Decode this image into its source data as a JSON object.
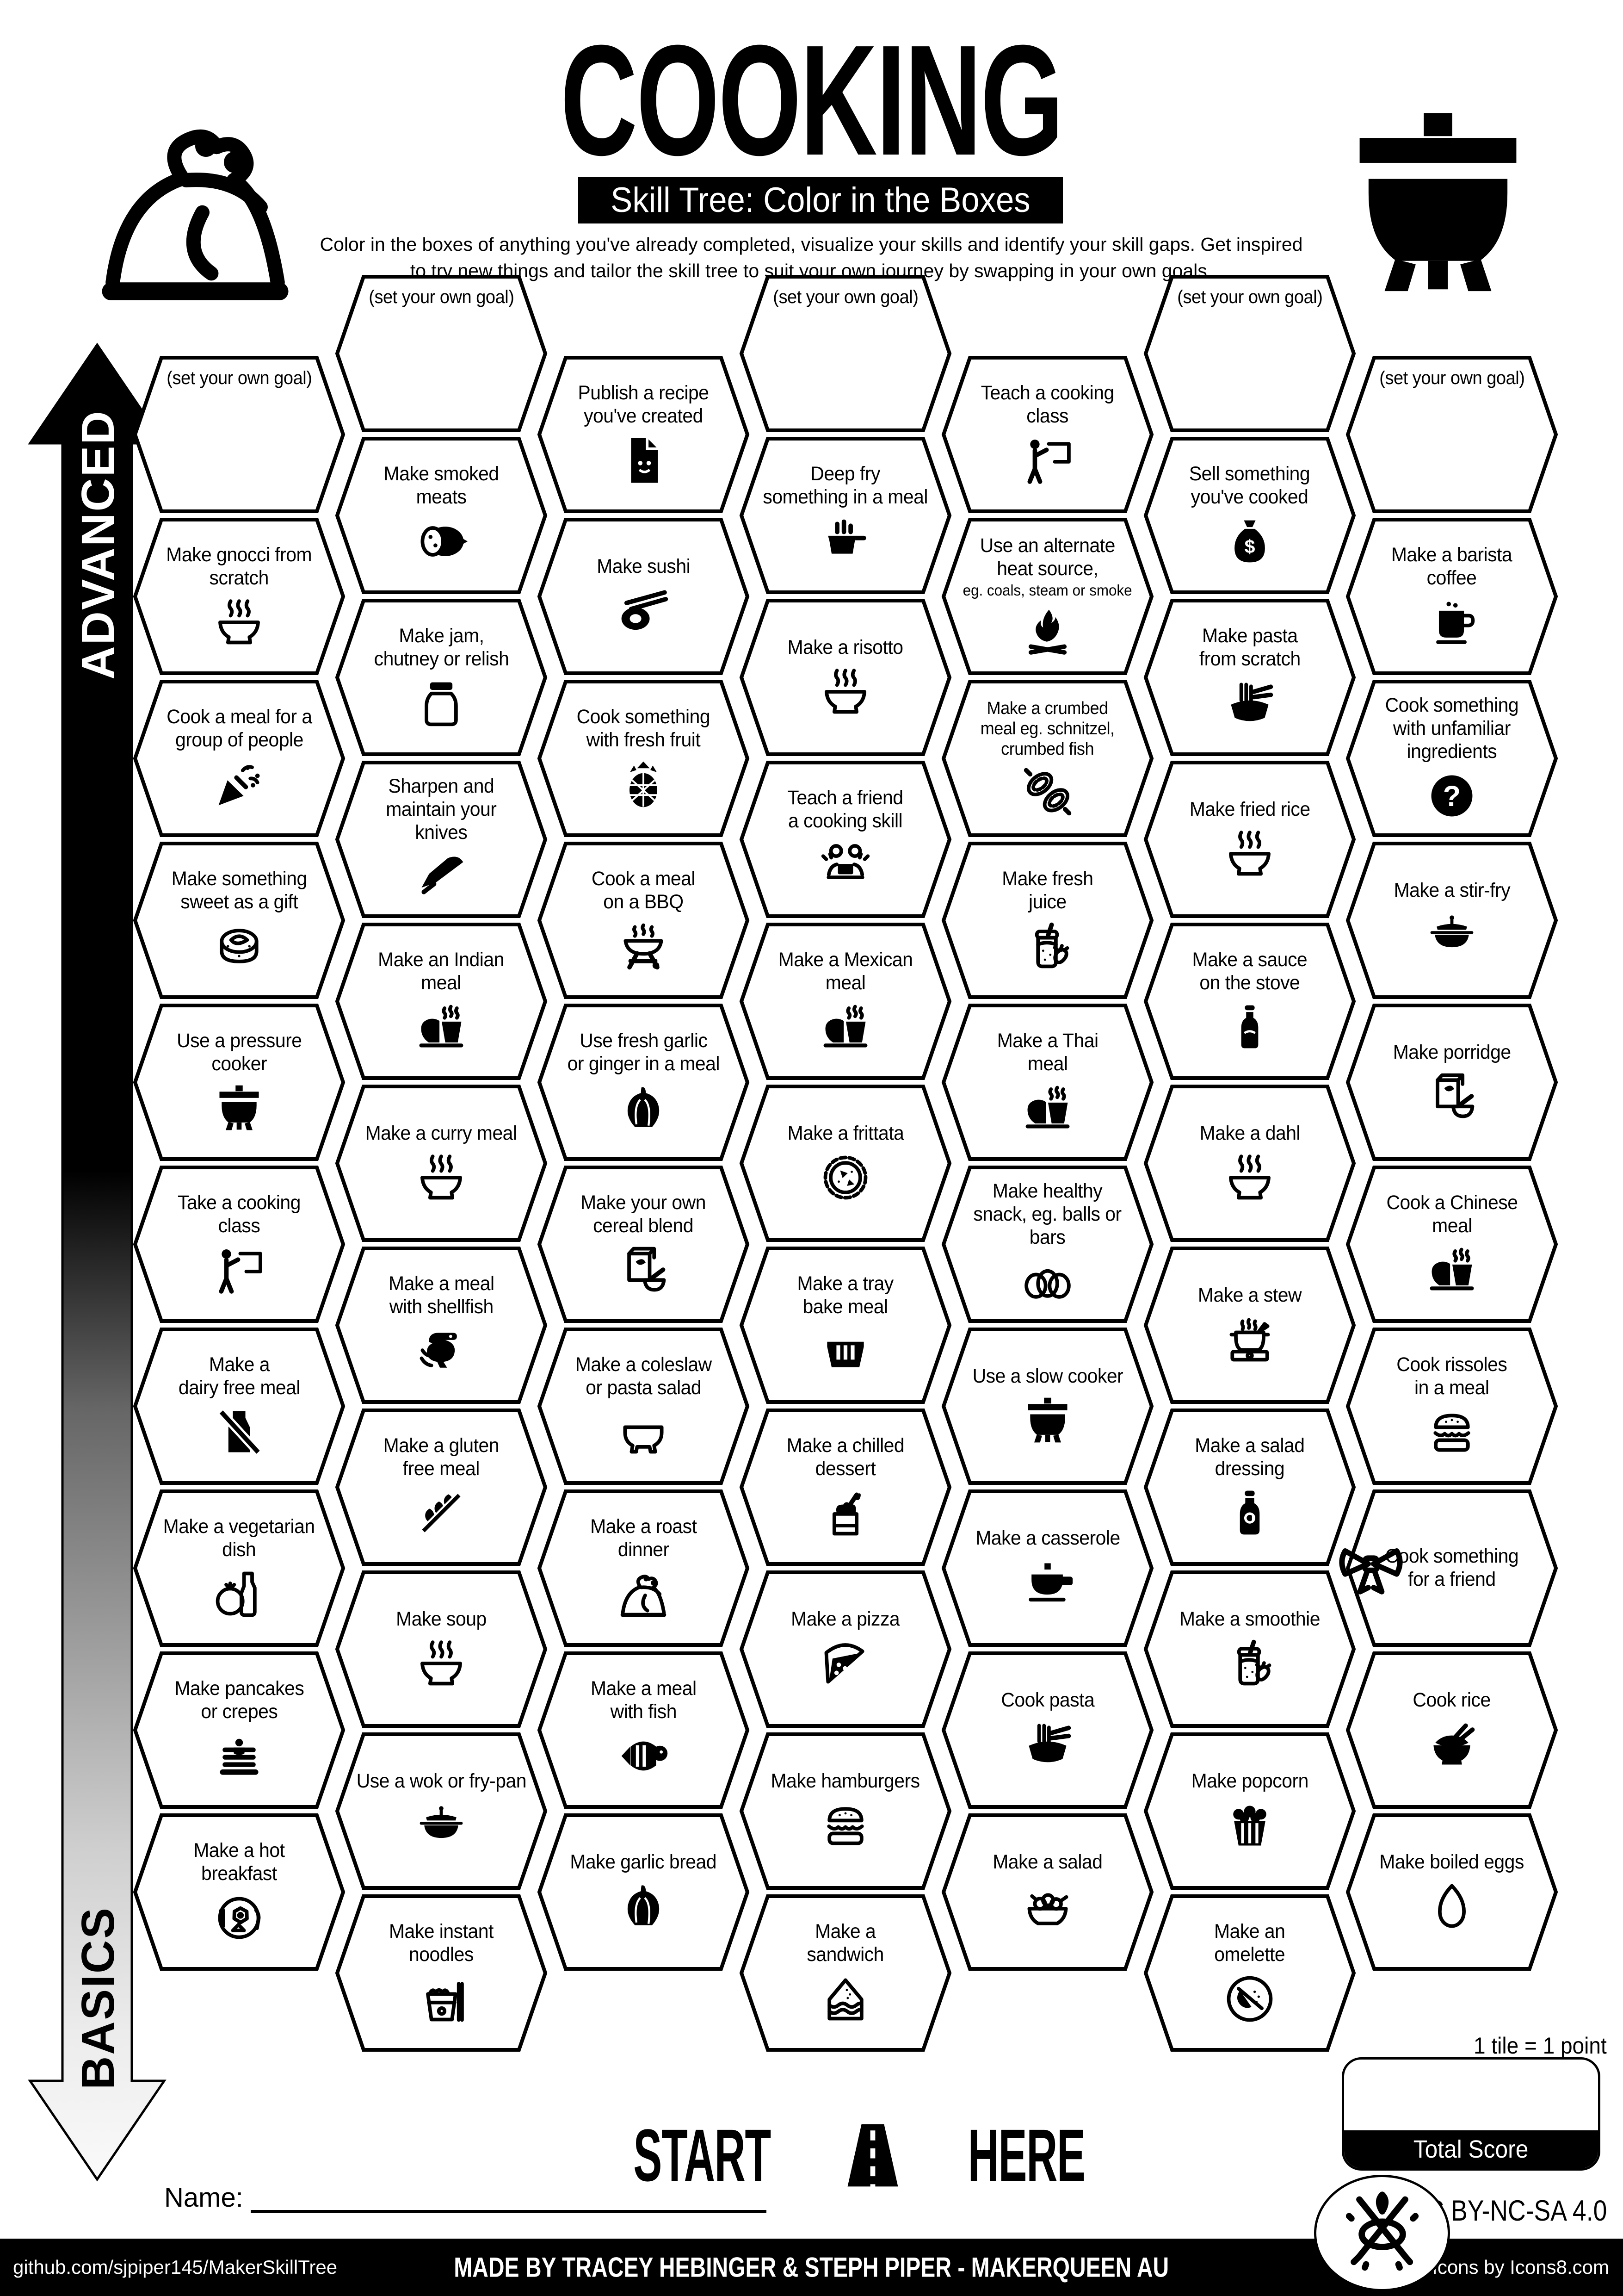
{
  "colors": {
    "ink": "#000000",
    "paper": "#ffffff"
  },
  "header": {
    "title": "COOKING",
    "subtitle": "Skill Tree: Color in the Boxes",
    "description": "Color in the boxes of anything you've already completed, visualize your skills and identify your skill gaps.  Get inspired\nto try new things and tailor the skill tree to suit your own journey by swapping in your own goals."
  },
  "axis": {
    "top_label": "ADVANCED",
    "bottom_label": "BASICS"
  },
  "tiles": [
    {
      "c": 0,
      "r": 0,
      "label": "(set your own goal)",
      "goal": true
    },
    {
      "c": 0,
      "r": 1,
      "label": "Make gnocci from\nscratch",
      "icon": "steaming-bowl"
    },
    {
      "c": 0,
      "r": 2,
      "label": "Cook a meal for a\ngroup of people",
      "icon": "party-popper"
    },
    {
      "c": 0,
      "r": 3,
      "label": "Make something\nsweet as a gift",
      "icon": "sweet-roll"
    },
    {
      "c": 0,
      "r": 4,
      "label": "Use a pressure\ncooker",
      "icon": "cauldron"
    },
    {
      "c": 0,
      "r": 5,
      "label": "Take a cooking\nclass",
      "icon": "person-board"
    },
    {
      "c": 0,
      "r": 6,
      "label": "Make a\ndairy free meal",
      "icon": "milk-crossed"
    },
    {
      "c": 0,
      "r": 7,
      "label": "Make a vegetarian\ndish",
      "icon": "tomato"
    },
    {
      "c": 0,
      "r": 8,
      "label": "Make pancakes\nor crepes",
      "icon": "pancakes"
    },
    {
      "c": 0,
      "r": 9,
      "label": "Make a hot\nbreakfast",
      "icon": "breakfast-plate"
    },
    {
      "c": 1,
      "r": 0,
      "label": "(set your own goal)",
      "goal": true
    },
    {
      "c": 1,
      "r": 1,
      "label": "Make smoked\nmeats",
      "icon": "salami"
    },
    {
      "c": 1,
      "r": 2,
      "label": "Make jam,\nchutney or relish",
      "icon": "jar"
    },
    {
      "c": 1,
      "r": 3,
      "label": "Sharpen and\nmaintain your\nknives",
      "icon": "knife"
    },
    {
      "c": 1,
      "r": 4,
      "label": "Make an Indian\nmeal",
      "icon": "meal"
    },
    {
      "c": 1,
      "r": 5,
      "label": "Make a curry meal",
      "icon": "steaming-bowl"
    },
    {
      "c": 1,
      "r": 6,
      "label": "Make a meal\nwith shellfish",
      "icon": "shrimp"
    },
    {
      "c": 1,
      "r": 7,
      "label": "Make a gluten\nfree meal",
      "icon": "wheat-crossed"
    },
    {
      "c": 1,
      "r": 8,
      "label": "Make soup",
      "icon": "steaming-bowl"
    },
    {
      "c": 1,
      "r": 9,
      "label": "Use a wok or fry-pan",
      "icon": "wok"
    },
    {
      "c": 1,
      "r": 10,
      "label": "Make instant\nnoodles",
      "icon": "noodle-box"
    },
    {
      "c": 2,
      "r": 0,
      "label": "Publish a recipe\nyou've created",
      "icon": "document"
    },
    {
      "c": 2,
      "r": 1,
      "label": "Make sushi",
      "icon": "sushi"
    },
    {
      "c": 2,
      "r": 2,
      "label": "Cook something\nwith fresh fruit",
      "icon": "pineapple"
    },
    {
      "c": 2,
      "r": 3,
      "label": "Cook a meal\non a BBQ",
      "icon": "bbq"
    },
    {
      "c": 2,
      "r": 4,
      "label": "Use fresh garlic\nor ginger in a meal",
      "icon": "garlic"
    },
    {
      "c": 2,
      "r": 5,
      "label": "Make your own\ncereal blend",
      "icon": "cereal"
    },
    {
      "c": 2,
      "r": 6,
      "label": "Make a coleslaw\nor pasta salad",
      "icon": "bowl"
    },
    {
      "c": 2,
      "r": 7,
      "label": "Make a roast\ndinner",
      "icon": "turkey"
    },
    {
      "c": 2,
      "r": 8,
      "label": "Make a meal\nwith fish",
      "icon": "fish"
    },
    {
      "c": 2,
      "r": 9,
      "label": "Make garlic bread",
      "icon": "garlic"
    },
    {
      "c": 3,
      "r": 0,
      "label": "(set your own goal)",
      "goal": true
    },
    {
      "c": 3,
      "r": 1,
      "label": "Deep fry\nsomething in a meal",
      "icon": "fry-basket"
    },
    {
      "c": 3,
      "r": 2,
      "label": "Make a risotto",
      "icon": "steaming-bowl"
    },
    {
      "c": 3,
      "r": 3,
      "label": "Teach a friend\na cooking skill",
      "icon": "people-laptop"
    },
    {
      "c": 3,
      "r": 4,
      "label": "Make a Mexican\nmeal",
      "icon": "meal"
    },
    {
      "c": 3,
      "r": 5,
      "label": "Make a frittata",
      "icon": "pie"
    },
    {
      "c": 3,
      "r": 6,
      "label": "Make a tray\nbake meal",
      "icon": "bundt"
    },
    {
      "c": 3,
      "r": 7,
      "label": "Make a chilled\ndessert",
      "icon": "sundae"
    },
    {
      "c": 3,
      "r": 8,
      "label": "Make a pizza",
      "icon": "pizza"
    },
    {
      "c": 3,
      "r": 9,
      "label": "Make hamburgers",
      "icon": "burger"
    },
    {
      "c": 3,
      "r": 10,
      "label": "Make a\nsandwich",
      "icon": "sandwich"
    },
    {
      "c": 4,
      "r": 0,
      "label": "Teach a cooking\nclass",
      "icon": "person-board"
    },
    {
      "c": 4,
      "r": 1,
      "label": "Use an alternate\nheat source,",
      "sub": "eg. coals, steam or smoke",
      "icon": "bonfire"
    },
    {
      "c": 4,
      "r": 2,
      "label": "Make a crumbed\nmeal eg. schnitzel,\ncrumbed fish",
      "size": "sm",
      "icon": "schnitzel"
    },
    {
      "c": 4,
      "r": 3,
      "label": "Make fresh\njuice",
      "icon": "juice"
    },
    {
      "c": 4,
      "r": 4,
      "label": "Make a Thai\nmeal",
      "icon": "meal"
    },
    {
      "c": 4,
      "r": 5,
      "label": "Make healthy\nsnack, eg. balls or\nbars",
      "icon": "eggs"
    },
    {
      "c": 4,
      "r": 6,
      "label": "Use a slow cooker",
      "icon": "cauldron"
    },
    {
      "c": 4,
      "r": 7,
      "label": "Make a casserole",
      "icon": "casserole"
    },
    {
      "c": 4,
      "r": 8,
      "label": "Cook pasta",
      "icon": "pasta"
    },
    {
      "c": 4,
      "r": 9,
      "label": "Make a salad",
      "icon": "salad"
    },
    {
      "c": 5,
      "r": 0,
      "label": "(set your own goal)",
      "goal": true
    },
    {
      "c": 5,
      "r": 1,
      "label": "Sell something\nyou've cooked",
      "icon": "money-bag"
    },
    {
      "c": 5,
      "r": 2,
      "label": "Make pasta\nfrom scratch",
      "icon": "pasta"
    },
    {
      "c": 5,
      "r": 3,
      "label": "Make fried rice",
      "icon": "steaming-bowl"
    },
    {
      "c": 5,
      "r": 4,
      "label": "Make a sauce\non the stove",
      "icon": "sauce-bottle"
    },
    {
      "c": 5,
      "r": 5,
      "label": "Make a dahl",
      "icon": "steaming-bowl"
    },
    {
      "c": 5,
      "r": 6,
      "label": "Make a stew",
      "icon": "stew"
    },
    {
      "c": 5,
      "r": 7,
      "label": "Make a salad\ndressing",
      "icon": "dressing-bottle"
    },
    {
      "c": 5,
      "r": 8,
      "label": "Make a smoothie",
      "icon": "juice"
    },
    {
      "c": 5,
      "r": 9,
      "label": "Make popcorn",
      "icon": "popcorn"
    },
    {
      "c": 5,
      "r": 10,
      "label": "Make an\nomelette",
      "icon": "omelette"
    },
    {
      "c": 6,
      "r": 0,
      "label": "(set your own goal)",
      "goal": true
    },
    {
      "c": 6,
      "r": 1,
      "label": "Make a barista\ncoffee",
      "icon": "coffee"
    },
    {
      "c": 6,
      "r": 2,
      "label": "Cook something\nwith unfamiliar\ningredients",
      "icon": "question"
    },
    {
      "c": 6,
      "r": 3,
      "label": "Make a stir-fry",
      "icon": "wok"
    },
    {
      "c": 6,
      "r": 4,
      "label": "Make porridge",
      "icon": "cereal"
    },
    {
      "c": 6,
      "r": 5,
      "label": "Cook a Chinese\nmeal",
      "icon": "meal"
    },
    {
      "c": 6,
      "r": 6,
      "label": "Cook rissoles\nin a meal",
      "icon": "burger"
    },
    {
      "c": 6,
      "r": 7,
      "label": "Cook something\nfor a friend",
      "bow": true
    },
    {
      "c": 6,
      "r": 8,
      "label": "Cook rice",
      "icon": "rice"
    },
    {
      "c": 6,
      "r": 9,
      "label": "Make boiled eggs",
      "icon": "egg"
    }
  ],
  "bottom": {
    "start_left": "START",
    "start_right": "HERE",
    "name_label": "Name:",
    "tile_note": "1 tile = 1 point",
    "total_score_label": "Total Score",
    "license": "CC BY-NC-SA 4.0"
  },
  "footer": {
    "left": "github.com/sjpiper145/MakerSkillTree",
    "center": "MADE BY TRACEY HEBINGER & STEPH PIPER  -  MAKERQUEEN AU",
    "right": "Icons by Icons8.com"
  }
}
